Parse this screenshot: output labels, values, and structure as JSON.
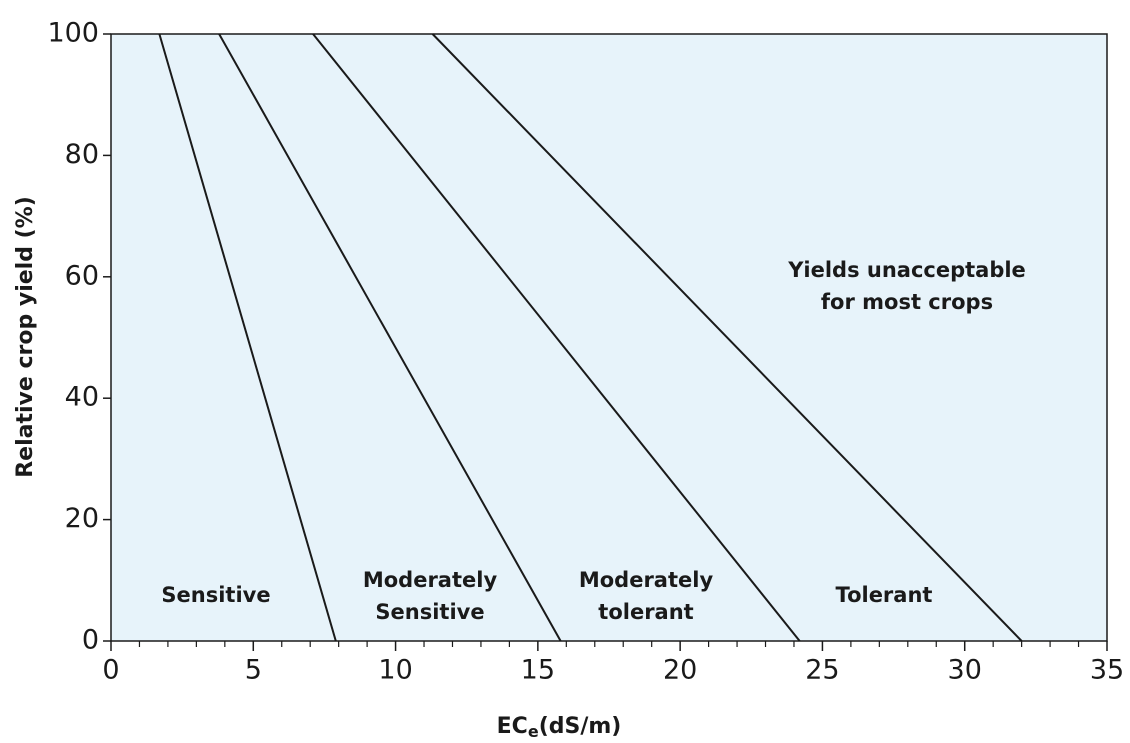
{
  "chart_data": {
    "type": "line",
    "xlabel": [
      "EC",
      "e",
      "(dS/m)"
    ],
    "ylabel": "Relative crop yield (%)",
    "xlim": [
      0,
      35
    ],
    "ylim": [
      0,
      100
    ],
    "xticks": [
      0,
      5,
      10,
      15,
      20,
      25,
      30,
      35
    ],
    "xminorticks": [
      1,
      2,
      3,
      4,
      6,
      7,
      8,
      9,
      11,
      12,
      13,
      14,
      16,
      17,
      18,
      19,
      21,
      22,
      23,
      24,
      26,
      27,
      28,
      29,
      31,
      32,
      33,
      34
    ],
    "yticks": [
      0,
      20,
      40,
      60,
      80,
      100
    ],
    "background": "#e7f3fa",
    "series": [
      {
        "color": "#1a1a1a",
        "x": [
          1.7,
          7.9
        ],
        "values": [
          100,
          0
        ]
      },
      {
        "color": "#1a1a1a",
        "x": [
          3.8,
          15.8
        ],
        "values": [
          100,
          0
        ]
      },
      {
        "color": "#1a1a1a",
        "x": [
          7.1,
          24.2
        ],
        "values": [
          100,
          0
        ]
      },
      {
        "color": "#1a1a1a",
        "x": [
          11.3,
          32
        ],
        "values": [
          100,
          0
        ]
      }
    ],
    "annotations": [
      [
        "Sensitive"
      ],
      [
        "Moderately",
        "Sensitive"
      ],
      [
        "Moderately",
        "tolerant"
      ],
      [
        "Tolerant"
      ],
      [
        "Yields unacceptable",
        "for most crops"
      ]
    ]
  }
}
